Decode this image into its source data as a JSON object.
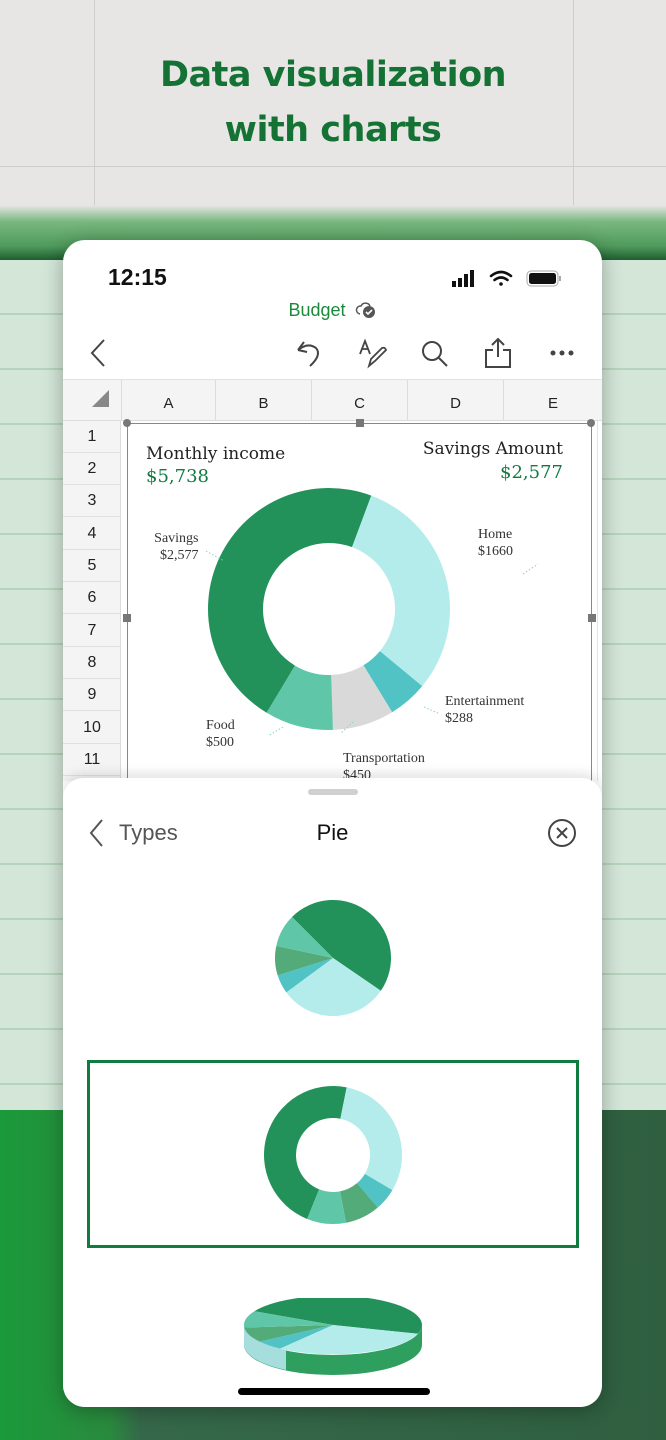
{
  "hero": {
    "line1": "Data visualization",
    "line2": "with charts"
  },
  "status_bar": {
    "time": "12:15",
    "icons": [
      "signal-icon",
      "wifi-icon",
      "battery-icon"
    ]
  },
  "document": {
    "title": "Budget",
    "sync_icon": "cloud-check-icon"
  },
  "toolbar": {
    "icons": [
      "back-icon",
      "undo-icon",
      "draw-icon",
      "search-icon",
      "share-icon",
      "more-icon"
    ]
  },
  "sheet": {
    "columns": [
      "A",
      "B",
      "C",
      "D",
      "E"
    ],
    "rows": [
      "1",
      "2",
      "3",
      "4",
      "5",
      "6",
      "7",
      "8",
      "9",
      "10",
      "11"
    ]
  },
  "chart_card": {
    "income_label": "Monthly income",
    "income_value": "$5,738",
    "savings_label": "Savings Amount",
    "savings_value": "$2,577",
    "accent": "#107c41"
  },
  "chart_data": {
    "type": "pie",
    "variant": "doughnut",
    "categories": [
      "Savings",
      "Home",
      "Entertainment",
      "Transportation",
      "Food"
    ],
    "values": [
      2577,
      1660,
      288,
      450,
      500
    ],
    "labels": [
      "$2,577",
      "$1660",
      "$288",
      "$450",
      "$500"
    ],
    "colors": [
      "#23925a",
      "#b4ecec",
      "#52c3c5",
      "#d9d9d9",
      "#60c6a8"
    ]
  },
  "picker": {
    "back_label": "Types",
    "title": "Pie",
    "close_icon": "close-circle-icon",
    "options": [
      "pie",
      "doughnut",
      "3d-pie"
    ],
    "selected": "doughnut",
    "thumb_colors": [
      "#23925a",
      "#b4ecec",
      "#52c3c5",
      "#52ab78",
      "#60c6a8"
    ]
  }
}
